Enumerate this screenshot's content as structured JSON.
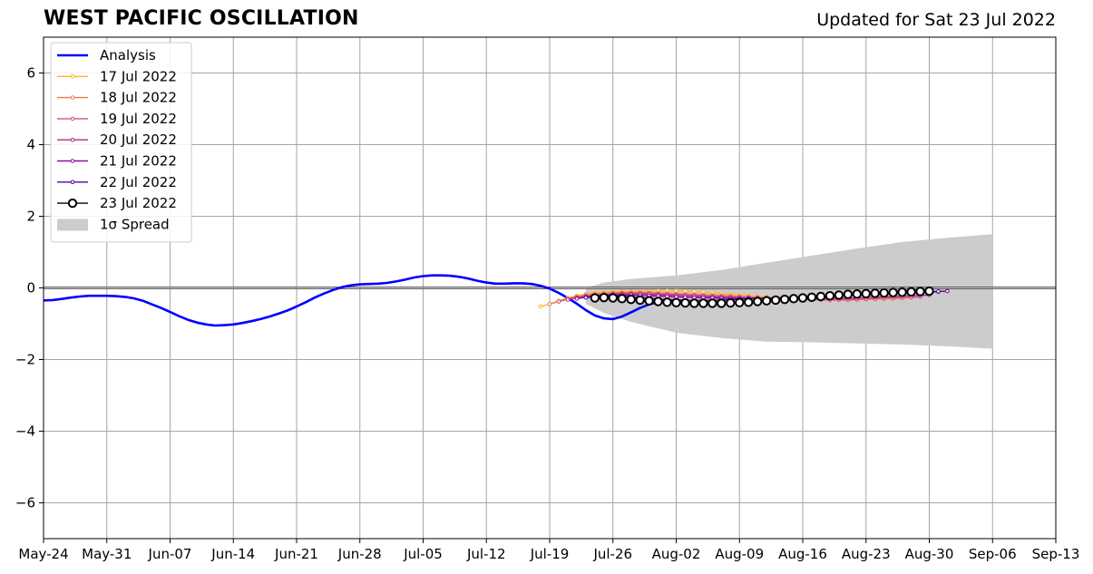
{
  "chart_data": {
    "type": "line",
    "title": "WEST PACIFIC OSCILLATION",
    "subtitle": "Updated for Sat 23 Jul 2022",
    "xlabel": "",
    "ylabel": "",
    "xlim": [
      "2022-05-24",
      "2022-09-13"
    ],
    "ylim": [
      -7,
      7
    ],
    "x_ticks": [
      "May-24",
      "May-31",
      "Jun-07",
      "Jun-14",
      "Jun-21",
      "Jun-28",
      "Jul-05",
      "Jul-12",
      "Jul-19",
      "Jul-26",
      "Aug-02",
      "Aug-09",
      "Aug-16",
      "Aug-23",
      "Aug-30",
      "Sep-06",
      "Sep-13"
    ],
    "y_ticks": [
      -6,
      -4,
      -2,
      0,
      2,
      4,
      6
    ],
    "y_tick_labels": [
      "−6",
      "−4",
      "−2",
      "0",
      "2",
      "4",
      "6"
    ],
    "grid": true,
    "legend_position": "top-left",
    "spread_label": "1σ Spread",
    "spread": {
      "start_date": "2022-07-23",
      "upper": [
        [
          0,
          0
        ],
        [
          2,
          0.15
        ],
        [
          5,
          0.25
        ],
        [
          10,
          0.35
        ],
        [
          15,
          0.5
        ],
        [
          20,
          0.7
        ],
        [
          25,
          0.9
        ],
        [
          30,
          1.1
        ],
        [
          35,
          1.28
        ],
        [
          40,
          1.4
        ],
        [
          45,
          1.5
        ]
      ],
      "lower": [
        [
          0,
          -0.45
        ],
        [
          2,
          -0.7
        ],
        [
          5,
          -0.95
        ],
        [
          10,
          -1.25
        ],
        [
          15,
          -1.4
        ],
        [
          20,
          -1.5
        ],
        [
          25,
          -1.52
        ],
        [
          30,
          -1.55
        ],
        [
          35,
          -1.58
        ],
        [
          40,
          -1.63
        ],
        [
          45,
          -1.7
        ]
      ]
    },
    "series": [
      {
        "name": "Analysis",
        "color": "#0000ff",
        "start_date": "2022-05-24",
        "values": [
          -0.35,
          -0.34,
          -0.31,
          -0.27,
          -0.24,
          -0.22,
          -0.22,
          -0.22,
          -0.23,
          -0.25,
          -0.29,
          -0.36,
          -0.46,
          -0.56,
          -0.67,
          -0.79,
          -0.89,
          -0.97,
          -1.02,
          -1.05,
          -1.04,
          -1.02,
          -0.98,
          -0.93,
          -0.87,
          -0.8,
          -0.72,
          -0.63,
          -0.52,
          -0.4,
          -0.27,
          -0.16,
          -0.06,
          0.02,
          0.07,
          0.1,
          0.11,
          0.12,
          0.14,
          0.18,
          0.23,
          0.29,
          0.33,
          0.35,
          0.35,
          0.34,
          0.31,
          0.26,
          0.2,
          0.15,
          0.12,
          0.12,
          0.13,
          0.13,
          0.11,
          0.06,
          -0.02,
          -0.14,
          -0.28,
          -0.44,
          -0.62,
          -0.77,
          -0.85,
          -0.87,
          -0.8,
          -0.68,
          -0.56,
          -0.46,
          -0.39,
          -0.35,
          -0.34,
          -0.37
        ]
      },
      {
        "name": "17 Jul 2022",
        "color": "#fdb42f",
        "start_date": "2022-07-18",
        "values": [
          -0.52,
          -0.45,
          -0.36,
          -0.28,
          -0.22,
          -0.17,
          -0.14,
          -0.12,
          -0.11,
          -0.1,
          -0.1,
          -0.09,
          -0.09,
          -0.08,
          -0.08,
          -0.08,
          -0.09,
          -0.1,
          -0.12,
          -0.14,
          -0.16,
          -0.18,
          -0.2,
          -0.22,
          -0.24,
          -0.25,
          -0.26,
          -0.27,
          -0.28,
          -0.29,
          -0.3,
          -0.31,
          -0.32,
          -0.33,
          -0.33,
          -0.33,
          -0.32,
          -0.32,
          -0.31,
          -0.3,
          -0.29
        ]
      },
      {
        "name": "18 Jul 2022",
        "color": "#ee7b51",
        "start_date": "2022-07-19",
        "values": [
          -0.45,
          -0.38,
          -0.3,
          -0.24,
          -0.2,
          -0.17,
          -0.15,
          -0.14,
          -0.13,
          -0.13,
          -0.13,
          -0.13,
          -0.14,
          -0.15,
          -0.16,
          -0.17,
          -0.18,
          -0.19,
          -0.2,
          -0.21,
          -0.22,
          -0.24,
          -0.25,
          -0.26,
          -0.27,
          -0.28,
          -0.29,
          -0.3,
          -0.31,
          -0.32,
          -0.33,
          -0.34,
          -0.34,
          -0.34,
          -0.33,
          -0.32,
          -0.31,
          -0.3,
          -0.29,
          -0.28,
          -0.27
        ]
      },
      {
        "name": "19 Jul 2022",
        "color": "#d5536f",
        "start_date": "2022-07-20",
        "values": [
          -0.38,
          -0.32,
          -0.27,
          -0.23,
          -0.2,
          -0.18,
          -0.16,
          -0.15,
          -0.15,
          -0.15,
          -0.16,
          -0.17,
          -0.18,
          -0.19,
          -0.2,
          -0.21,
          -0.22,
          -0.23,
          -0.24,
          -0.25,
          -0.26,
          -0.27,
          -0.28,
          -0.29,
          -0.3,
          -0.31,
          -0.32,
          -0.32,
          -0.33,
          -0.33,
          -0.33,
          -0.33,
          -0.33,
          -0.32,
          -0.31,
          -0.3,
          -0.29,
          -0.28,
          -0.27,
          -0.26,
          -0.25
        ]
      },
      {
        "name": "20 Jul 2022",
        "color": "#b02a8f",
        "start_date": "2022-07-21",
        "values": [
          -0.33,
          -0.28,
          -0.24,
          -0.21,
          -0.19,
          -0.18,
          -0.17,
          -0.17,
          -0.17,
          -0.18,
          -0.19,
          -0.2,
          -0.21,
          -0.22,
          -0.23,
          -0.24,
          -0.25,
          -0.26,
          -0.27,
          -0.28,
          -0.28,
          -0.29,
          -0.29,
          -0.3,
          -0.3,
          -0.3,
          -0.3,
          -0.3,
          -0.3,
          -0.3,
          -0.29,
          -0.29,
          -0.28,
          -0.27,
          -0.26,
          -0.25,
          -0.24,
          -0.23,
          -0.22,
          -0.21,
          -0.2
        ]
      },
      {
        "name": "21 Jul 2022",
        "color": "#8b0aa5",
        "start_date": "2022-07-22",
        "values": [
          -0.3,
          -0.26,
          -0.23,
          -0.21,
          -0.2,
          -0.2,
          -0.2,
          -0.21,
          -0.22,
          -0.23,
          -0.24,
          -0.25,
          -0.26,
          -0.27,
          -0.28,
          -0.28,
          -0.29,
          -0.29,
          -0.29,
          -0.29,
          -0.29,
          -0.29,
          -0.28,
          -0.28,
          -0.27,
          -0.26,
          -0.25,
          -0.24,
          -0.23,
          -0.22,
          -0.21,
          -0.2,
          -0.19,
          -0.18,
          -0.17,
          -0.16,
          -0.15,
          -0.14,
          -0.13,
          -0.12,
          -0.11
        ]
      },
      {
        "name": "22 Jul 2022",
        "color": "#5302a3",
        "start_date": "2022-07-23",
        "values": [
          -0.27,
          -0.24,
          -0.22,
          -0.22,
          -0.23,
          -0.25,
          -0.27,
          -0.29,
          -0.31,
          -0.33,
          -0.34,
          -0.35,
          -0.35,
          -0.35,
          -0.35,
          -0.34,
          -0.33,
          -0.32,
          -0.31,
          -0.3,
          -0.29,
          -0.28,
          -0.27,
          -0.26,
          -0.25,
          -0.24,
          -0.23,
          -0.22,
          -0.21,
          -0.2,
          -0.19,
          -0.18,
          -0.17,
          -0.16,
          -0.15,
          -0.14,
          -0.13,
          -0.12,
          -0.11,
          -0.1,
          -0.09
        ]
      },
      {
        "name": "23 Jul 2022",
        "color": "#000000",
        "start_date": "2022-07-24",
        "values": [
          -0.28,
          -0.27,
          -0.28,
          -0.3,
          -0.32,
          -0.34,
          -0.36,
          -0.38,
          -0.4,
          -0.41,
          -0.42,
          -0.43,
          -0.43,
          -0.43,
          -0.43,
          -0.42,
          -0.41,
          -0.4,
          -0.38,
          -0.36,
          -0.34,
          -0.32,
          -0.3,
          -0.28,
          -0.26,
          -0.24,
          -0.22,
          -0.2,
          -0.18,
          -0.17,
          -0.16,
          -0.15,
          -0.14,
          -0.13,
          -0.12,
          -0.11,
          -0.1,
          -0.09
        ]
      }
    ]
  }
}
